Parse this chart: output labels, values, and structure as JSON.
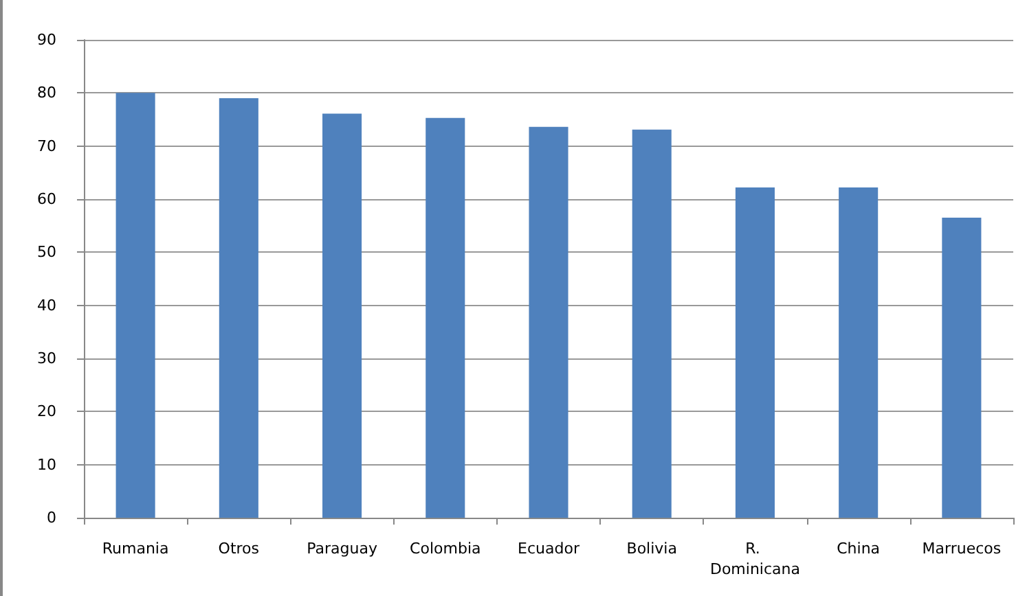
{
  "chart_data": {
    "type": "bar",
    "categories": [
      "Rumania",
      "Otros",
      "Paraguay",
      "Colombia",
      "Ecuador",
      "Bolivia",
      "R. Dominicana",
      "China",
      "Marruecos"
    ],
    "values": [
      80,
      79,
      76.1,
      75.3,
      73.6,
      73.1,
      62.2,
      62.2,
      56.5
    ],
    "color": "#4f81bd",
    "ylim": [
      0,
      90
    ],
    "yticks": [
      0,
      10,
      20,
      30,
      40,
      50,
      60,
      70,
      80,
      90
    ],
    "grid": "y"
  }
}
